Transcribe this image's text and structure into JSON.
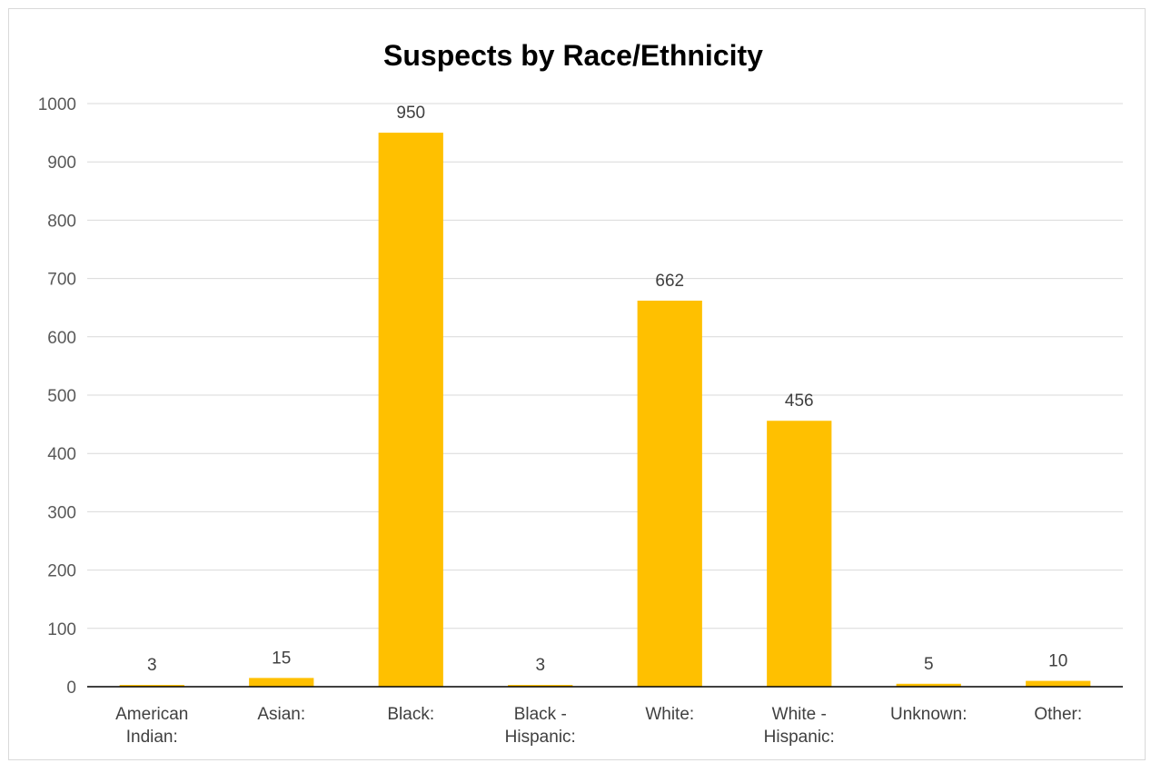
{
  "chart_data": {
    "type": "bar",
    "title": "Suspects by Race/Ethnicity",
    "categories": [
      [
        "American",
        "Indian:"
      ],
      [
        "Asian:"
      ],
      [
        "Black:"
      ],
      [
        "Black -",
        "Hispanic:"
      ],
      [
        "White:"
      ],
      [
        "White -",
        "Hispanic:"
      ],
      [
        "Unknown:"
      ],
      [
        "Other:"
      ]
    ],
    "values": [
      3,
      15,
      950,
      3,
      662,
      456,
      5,
      10
    ],
    "ylim": [
      0,
      1000
    ],
    "yticks": [
      0,
      100,
      200,
      300,
      400,
      500,
      600,
      700,
      800,
      900,
      1000
    ],
    "grid": true,
    "legend": "none",
    "colors": {
      "bar": "#ffc000",
      "grid": "#d9d9d9",
      "axis": "#000000",
      "tick_label": "#595959",
      "data_label": "#404040",
      "title": "#000000"
    }
  }
}
